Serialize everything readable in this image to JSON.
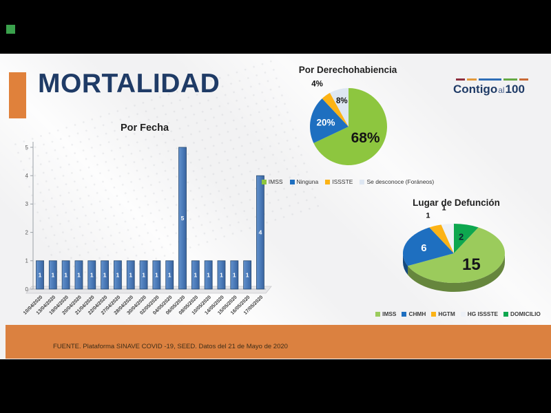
{
  "scene": {
    "title": "MORTALIDAD",
    "footer_text": "FUENTE. Plataforma SINAVE COVID -19, SEED. Datos del 21 de Mayo de 2020",
    "logo": {
      "part1": "Contigo",
      "part2": "al",
      "part3": "100"
    },
    "colors": {
      "accent_orange": "#E0813B",
      "footer_orange": "#DB8140",
      "title_navy": "#1F3B66",
      "letterbox_black": "#000000",
      "green_square": "#3AA14C"
    }
  },
  "chart_data": [
    {
      "type": "bar",
      "title": "Por Fecha",
      "categories": [
        "10/04/2020",
        "13/04/2020",
        "19/04/2020",
        "20/04/2020",
        "21/04/2020",
        "22/04/2020",
        "27/04/2020",
        "28/04/2020",
        "30/04/2020",
        "02/05/2020",
        "04/05/2020",
        "06/05/2020",
        "08/05/2020",
        "10/05/2020",
        "14/05/2020",
        "15/05/2020",
        "16/05/2020",
        "17/05/2020"
      ],
      "values": [
        1,
        1,
        1,
        1,
        1,
        1,
        1,
        1,
        1,
        1,
        1,
        5,
        1,
        1,
        1,
        1,
        1,
        4
      ],
      "xlabel": "",
      "ylabel": "",
      "ylim": [
        0,
        5
      ],
      "yticks": [
        0,
        1,
        2,
        3,
        4,
        5
      ],
      "grid": false,
      "legend_position": "none",
      "bar_color": "#4A7AB8",
      "value_label_color": "#ffffff"
    },
    {
      "type": "pie",
      "title": "Por Derechohabiencia",
      "labels": [
        "IMSS",
        "Ninguna",
        "ISSSTE",
        "Se desconoce (Foráneos)"
      ],
      "values": [
        68,
        20,
        4,
        8
      ],
      "value_suffix": "%",
      "colors": [
        "#8DC63F",
        "#1E6FC0",
        "#FCB316",
        "#DEE7F2"
      ],
      "legend_position": "bottom"
    },
    {
      "type": "pie3d",
      "title": "Lugar de Defunción",
      "labels": [
        "IMSS",
        "CHMH",
        "HGTM",
        "HG ISSSTE",
        "DOMICILIO"
      ],
      "values": [
        15,
        6,
        1,
        1,
        2
      ],
      "value_suffix": "",
      "colors": [
        "#9BCB5C",
        "#1E6FC0",
        "#FCB316",
        "#EDF1F7",
        "#0EA74F"
      ],
      "legend_position": "bottom"
    }
  ]
}
